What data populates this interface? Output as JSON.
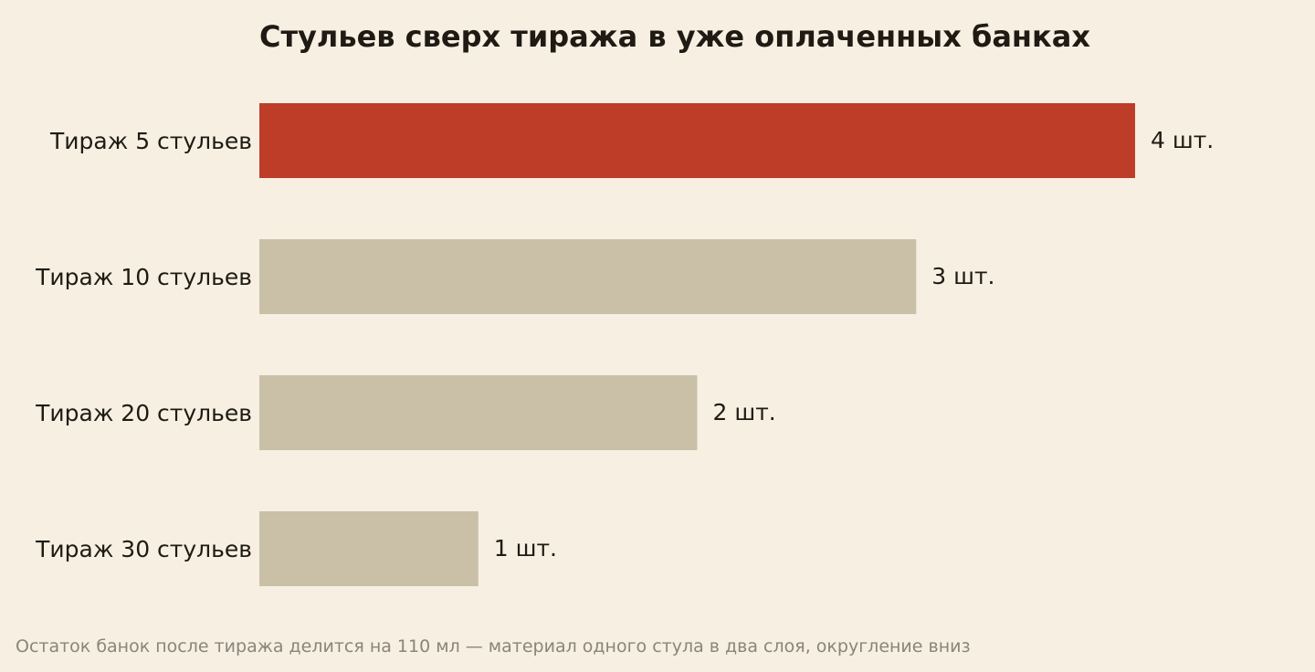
{
  "chart_data": {
    "type": "bar",
    "orientation": "horizontal",
    "title": "Стульев сверх тиража в уже оплаченных банках",
    "categories": [
      "Тираж 5 стульев",
      "Тираж 10 стульев",
      "Тираж 20 стульев",
      "Тираж 30 стульев"
    ],
    "values": [
      4,
      3,
      2,
      1
    ],
    "value_labels": [
      "4 шт.",
      "3 шт.",
      "2 шт.",
      "1 шт."
    ],
    "xlim": [
      0,
      4
    ],
    "grid": false,
    "highlight_index": 0,
    "colors": {
      "highlight": "#bd3d28",
      "bar": "#c9c0a7",
      "background": "#f6efe2",
      "text": "#1f1b14",
      "footnote": "#8a847a"
    },
    "footnote": "Остаток банок после тиража делится на 110 мл — материал одного стула в два слоя, округление вниз"
  }
}
